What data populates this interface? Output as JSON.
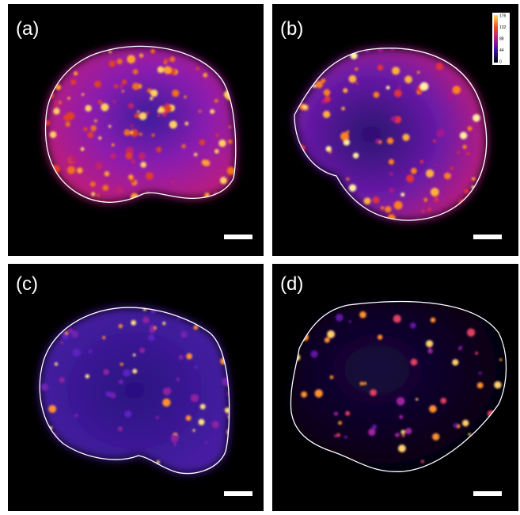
{
  "panels": [
    {
      "label": "(a)"
    },
    {
      "label": "(b)"
    },
    {
      "label": "(c)"
    },
    {
      "label": "(d)"
    }
  ],
  "colorbar": {
    "ticks": [
      176,
      132,
      88,
      44,
      0
    ]
  }
}
